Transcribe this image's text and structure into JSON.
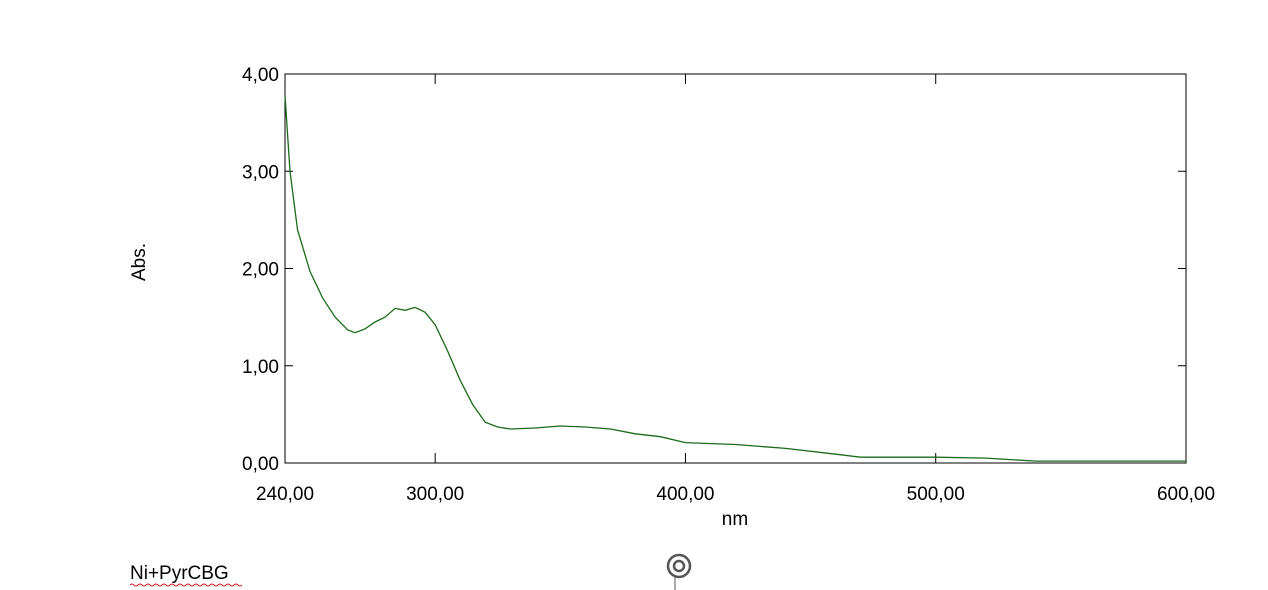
{
  "chart_data": {
    "type": "line",
    "x_label": "nm",
    "y_label": "Abs.",
    "caption": "Ni+PyrCBG",
    "x": [
      240,
      242,
      245,
      250,
      255,
      260,
      265,
      268,
      272,
      276,
      280,
      284,
      288,
      292,
      296,
      300,
      305,
      310,
      315,
      320,
      325,
      330,
      340,
      350,
      360,
      370,
      380,
      390,
      400,
      420,
      440,
      460,
      470,
      500,
      520,
      540,
      560,
      600
    ],
    "series": [
      {
        "color": "#1b6b1b",
        "values": [
          3.78,
          3.0,
          2.4,
          1.97,
          1.7,
          1.5,
          1.37,
          1.34,
          1.38,
          1.45,
          1.5,
          1.59,
          1.57,
          1.6,
          1.55,
          1.42,
          1.15,
          0.85,
          0.6,
          0.42,
          0.37,
          0.35,
          0.36,
          0.38,
          0.37,
          0.35,
          0.3,
          0.27,
          0.21,
          0.19,
          0.15,
          0.09,
          0.06,
          0.06,
          0.05,
          0.02,
          0.02,
          0.02
        ]
      }
    ],
    "xlim": [
      240,
      600
    ],
    "xticks": [
      {
        "value": 240,
        "label": "240,00"
      },
      {
        "value": 300,
        "label": "300,00"
      },
      {
        "value": 400,
        "label": "400,00"
      },
      {
        "value": 500,
        "label": "500,00"
      },
      {
        "value": 600,
        "label": "600,00"
      }
    ],
    "ylim": [
      0,
      4
    ],
    "yticks": [
      {
        "value": 0,
        "label": "0,00"
      },
      {
        "value": 1,
        "label": "1,00"
      },
      {
        "value": 2,
        "label": "2,00"
      },
      {
        "value": 3,
        "label": "3,00"
      },
      {
        "value": 4,
        "label": "4,00"
      }
    ]
  }
}
